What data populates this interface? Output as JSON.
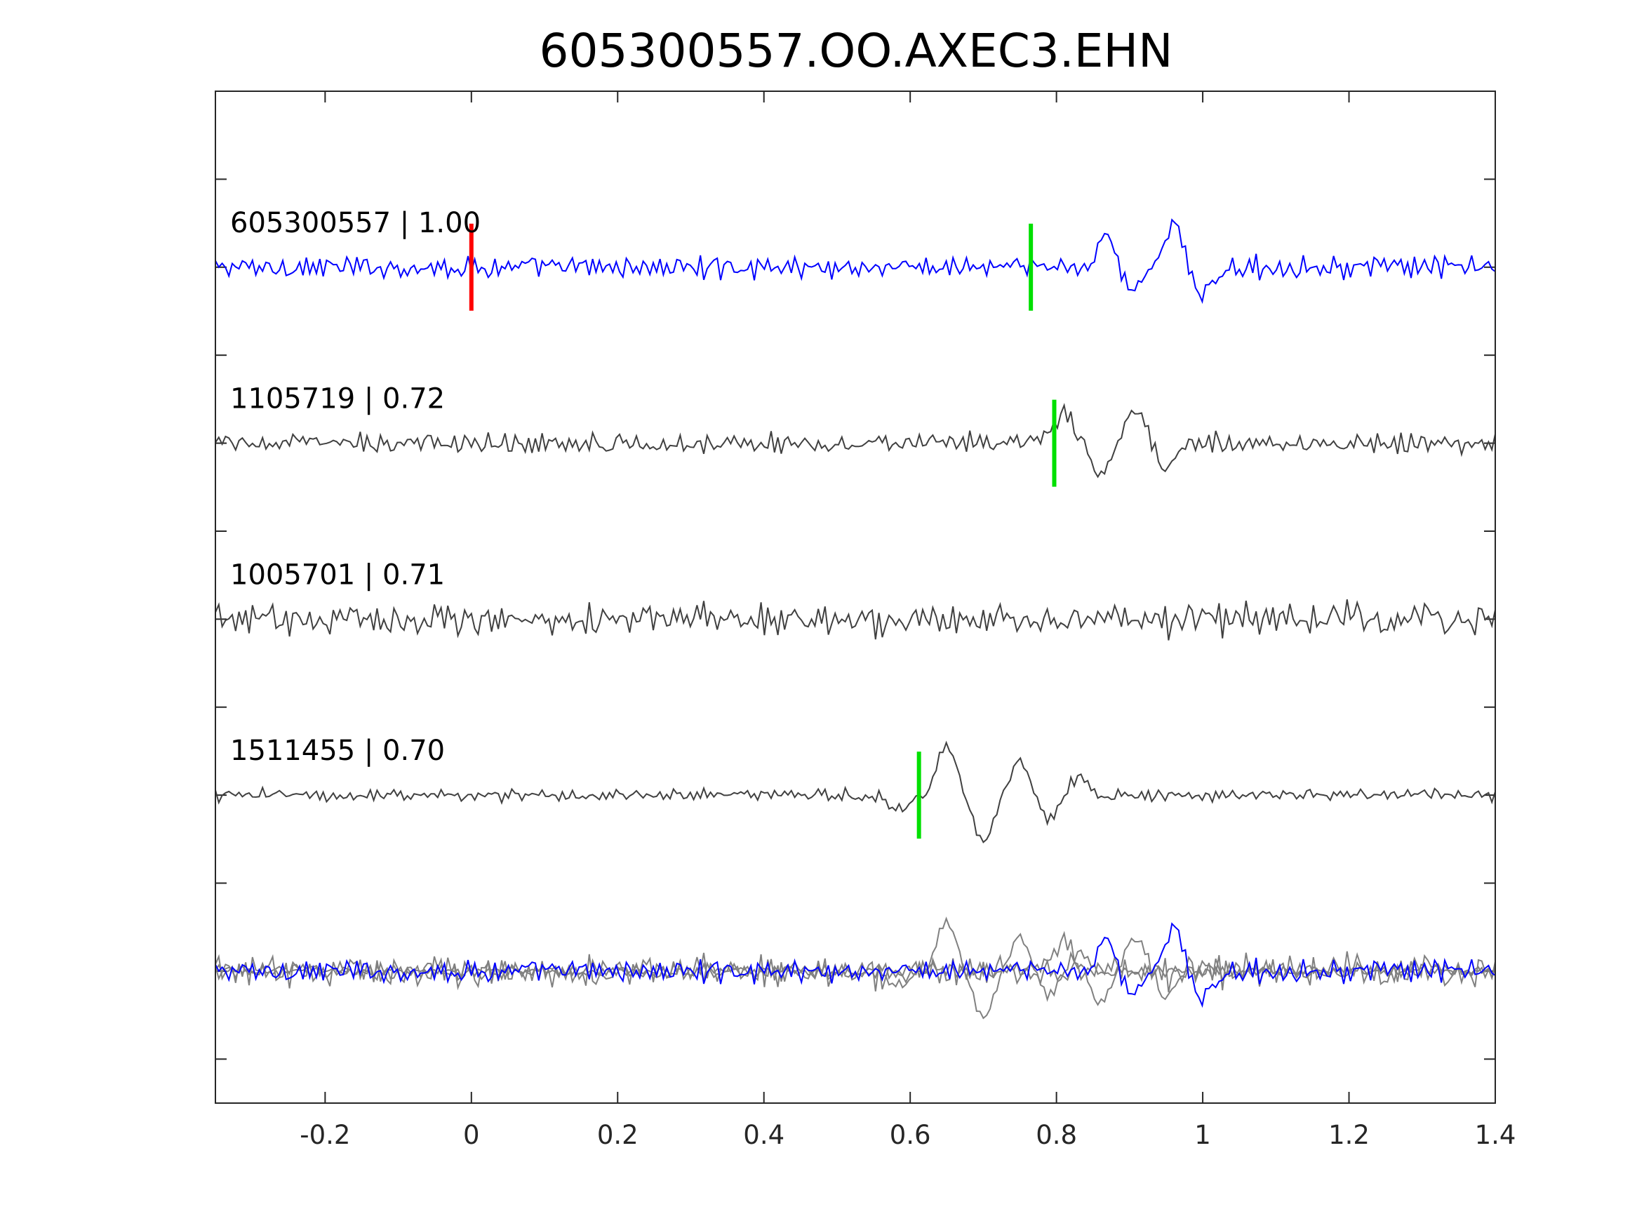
{
  "chart_data": {
    "type": "line",
    "title": "605300557.OO.AXEC3.EHN",
    "xlabel": "",
    "ylabel": "",
    "xlim": [
      -0.35,
      1.4
    ],
    "x_ticks": [
      -0.2,
      0,
      0.2,
      0.4,
      0.6,
      0.8,
      1,
      1.2,
      1.4
    ],
    "x_tick_labels": [
      "-0.2",
      "0",
      "0.2",
      "0.4",
      "0.6",
      "0.8",
      "1",
      "1.2",
      "1.4"
    ],
    "y_ticks_count": 11,
    "y_tick_labels_shown": false,
    "grid": false,
    "colors": {
      "reference_trace": "#0000ff",
      "correlated_trace": "#404040",
      "stack_trace": "#808080",
      "reference_pick": "#ff0000",
      "arrival_pick": "#00e000",
      "axes": "#262626"
    },
    "series": [
      {
        "event_id": "605300557",
        "correlation": "1.00",
        "label": "605300557 | 1.00",
        "color": "#0000ff",
        "amplitude": 1.0,
        "picks": [
          {
            "time": 0.0,
            "color": "#ff0000"
          },
          {
            "time": 0.765,
            "color": "#00e000"
          }
        ],
        "wavelets": [
          [
            0.87,
            0.9
          ],
          [
            0.9,
            -0.7
          ],
          [
            0.96,
            1.1
          ],
          [
            1.0,
            -0.8
          ]
        ]
      },
      {
        "event_id": "1105719",
        "correlation": "0.72",
        "label": "1105719 | 0.72",
        "color": "#404040",
        "amplitude": 0.9,
        "picks": [
          {
            "time": 0.797,
            "color": "#00e000"
          }
        ],
        "wavelets": [
          [
            0.81,
            0.8
          ],
          [
            0.86,
            -0.9
          ],
          [
            0.91,
            0.9
          ],
          [
            0.95,
            -0.7
          ]
        ]
      },
      {
        "event_id": "1005701",
        "correlation": "0.71",
        "label": "1005701 | 0.71",
        "color": "#404040",
        "amplitude": 1.5,
        "picks": [],
        "wavelets": []
      },
      {
        "event_id": "1511455",
        "correlation": "0.70",
        "label": "1511455 | 0.70",
        "color": "#404040",
        "amplitude": 0.6,
        "picks": [
          {
            "time": 0.612,
            "color": "#00e000"
          }
        ],
        "wavelets": [
          [
            0.585,
            -0.4
          ],
          [
            0.65,
            1.3
          ],
          [
            0.7,
            -1.2
          ],
          [
            0.75,
            0.9
          ],
          [
            0.79,
            -0.6
          ],
          [
            0.83,
            0.5
          ]
        ]
      }
    ],
    "stack": {
      "label": "",
      "description_of_content": "overlay of all four traces at the bottom row"
    }
  }
}
